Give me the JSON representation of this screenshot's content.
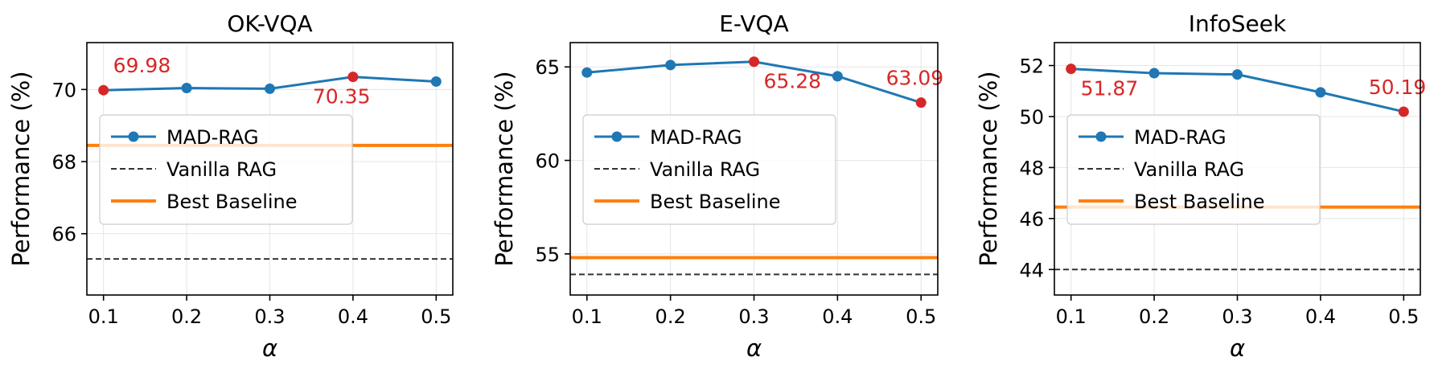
{
  "figure": {
    "y_axis_label": "Performance (%)",
    "x_axis_label": "α",
    "legend": {
      "mad_rag": "MAD-RAG",
      "vanilla_rag": "Vanilla RAG",
      "best_baseline": "Best Baseline"
    },
    "colors": {
      "mad_rag": "#1f77b4",
      "highlight": "#d62728",
      "best_baseline": "#ff7f0e",
      "vanilla_rag": "#333333",
      "grid": "#e5e5e5"
    }
  },
  "chart_data": [
    {
      "type": "line",
      "title": "OK-VQA",
      "xlabel": "α",
      "ylabel": "Performance (%)",
      "x": [
        0.1,
        0.2,
        0.3,
        0.4,
        0.5
      ],
      "xticks": [
        "0.1",
        "0.2",
        "0.3",
        "0.4",
        "0.5"
      ],
      "xlim": [
        0.08,
        0.52
      ],
      "ylim": [
        64.3,
        71.3
      ],
      "yticks": [
        66,
        68,
        70
      ],
      "series": [
        {
          "name": "MAD-RAG",
          "values": [
            69.98,
            70.04,
            70.02,
            70.35,
            70.22
          ]
        }
      ],
      "reference_lines": [
        {
          "name": "Vanilla RAG",
          "value": 65.3,
          "style": "dashed"
        },
        {
          "name": "Best Baseline",
          "value": 68.45,
          "style": "solid"
        }
      ],
      "highlighted_points": [
        {
          "x": 0.1,
          "value": 69.98,
          "label": "69.98",
          "label_position": "above"
        },
        {
          "x": 0.4,
          "value": 70.35,
          "label": "70.35",
          "label_position": "below"
        }
      ],
      "legend_position": "center-left",
      "grid": true
    },
    {
      "type": "line",
      "title": "E-VQA",
      "xlabel": "α",
      "ylabel": "Performance (%)",
      "x": [
        0.1,
        0.2,
        0.3,
        0.4,
        0.5
      ],
      "xticks": [
        "0.1",
        "0.2",
        "0.3",
        "0.4",
        "0.5"
      ],
      "xlim": [
        0.08,
        0.52
      ],
      "ylim": [
        52.8,
        66.3
      ],
      "yticks": [
        55,
        60,
        65
      ],
      "series": [
        {
          "name": "MAD-RAG",
          "values": [
            64.7,
            65.1,
            65.28,
            64.5,
            63.09
          ]
        }
      ],
      "reference_lines": [
        {
          "name": "Vanilla RAG",
          "value": 53.9,
          "style": "dashed"
        },
        {
          "name": "Best Baseline",
          "value": 54.8,
          "style": "solid"
        }
      ],
      "highlighted_points": [
        {
          "x": 0.3,
          "value": 65.28,
          "label": "65.28",
          "label_position": "below"
        },
        {
          "x": 0.5,
          "value": 63.09,
          "label": "63.09",
          "label_position": "above"
        }
      ],
      "legend_position": "center-left",
      "grid": true
    },
    {
      "type": "line",
      "title": "InfoSeek",
      "xlabel": "α",
      "ylabel": "Performance (%)",
      "x": [
        0.1,
        0.2,
        0.3,
        0.4,
        0.5
      ],
      "xticks": [
        "0.1",
        "0.2",
        "0.3",
        "0.4",
        "0.5"
      ],
      "xlim": [
        0.08,
        0.52
      ],
      "ylim": [
        43.0,
        52.9
      ],
      "yticks": [
        44,
        46,
        48,
        50,
        52
      ],
      "series": [
        {
          "name": "MAD-RAG",
          "values": [
            51.87,
            51.7,
            51.65,
            50.95,
            50.19
          ]
        }
      ],
      "reference_lines": [
        {
          "name": "Vanilla RAG",
          "value": 44.0,
          "style": "dashed"
        },
        {
          "name": "Best Baseline",
          "value": 46.45,
          "style": "solid"
        }
      ],
      "highlighted_points": [
        {
          "x": 0.1,
          "value": 51.87,
          "label": "51.87",
          "label_position": "below"
        },
        {
          "x": 0.5,
          "value": 50.19,
          "label": "50.19",
          "label_position": "above"
        }
      ],
      "legend_position": "center-left",
      "grid": true
    }
  ]
}
